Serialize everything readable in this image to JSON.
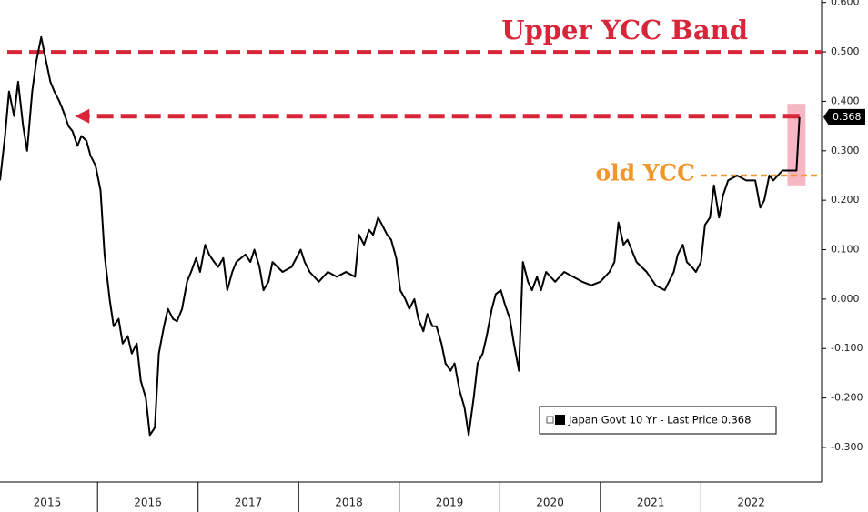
{
  "chart_data": {
    "type": "line",
    "xlim": [
      2015.03,
      2023.2
    ],
    "ylim": [
      -0.37,
      0.605
    ],
    "xticks": [
      {
        "value": 2015,
        "label": "2015"
      },
      {
        "value": 2016,
        "label": "2016"
      },
      {
        "value": 2017,
        "label": "2017"
      },
      {
        "value": 2018,
        "label": "2018"
      },
      {
        "value": 2019,
        "label": "2019"
      },
      {
        "value": 2020,
        "label": "2020"
      },
      {
        "value": 2021,
        "label": "2021"
      },
      {
        "value": 2022,
        "label": "2022"
      }
    ],
    "yticks": [
      {
        "value": 0.6,
        "label": "0.600"
      },
      {
        "value": 0.5,
        "label": "0.500"
      },
      {
        "value": 0.4,
        "label": "0.400"
      },
      {
        "value": 0.3,
        "label": "0.300"
      },
      {
        "value": 0.2,
        "label": "0.200"
      },
      {
        "value": 0.1,
        "label": "0.100"
      },
      {
        "value": 0,
        "label": "0.000"
      },
      {
        "value": -0.1,
        "label": "-0.100"
      },
      {
        "value": -0.2,
        "label": "-0.200"
      },
      {
        "value": -0.3,
        "label": "-0.300"
      }
    ],
    "legend": "lower right",
    "x": [
      2015.03,
      2015.08,
      2015.12,
      2015.17,
      2015.21,
      2015.26,
      2015.3,
      2015.35,
      2015.39,
      2015.44,
      2015.48,
      2015.53,
      2015.57,
      2015.62,
      2015.66,
      2015.71,
      2015.75,
      2015.8,
      2015.84,
      2015.89,
      2015.93,
      2015.98,
      2016.03,
      2016.07,
      2016.12,
      2016.16,
      2016.21,
      2016.25,
      2016.3,
      2016.34,
      2016.39,
      2016.43,
      2016.48,
      2016.52,
      2016.57,
      2016.61,
      2016.66,
      2016.7,
      2016.75,
      2016.79,
      2016.84,
      2016.89,
      2016.93,
      2016.98,
      2017.02,
      2017.07,
      2017.11,
      2017.16,
      2017.2,
      2017.25,
      2017.29,
      2017.34,
      2017.38,
      2017.47,
      2017.52,
      2017.56,
      2017.61,
      2017.65,
      2017.7,
      2017.74,
      2017.84,
      2017.93,
      2018.02,
      2018.06,
      2018.11,
      2018.2,
      2018.29,
      2018.38,
      2018.47,
      2018.56,
      2018.6,
      2018.65,
      2018.7,
      2018.74,
      2018.79,
      2018.83,
      2018.88,
      2018.92,
      2018.97,
      2019.01,
      2019.06,
      2019.1,
      2019.15,
      2019.19,
      2019.24,
      2019.28,
      2019.33,
      2019.37,
      2019.42,
      2019.46,
      2019.51,
      2019.55,
      2019.6,
      2019.65,
      2019.69,
      2019.74,
      2019.78,
      2019.83,
      2019.87,
      2019.92,
      2019.96,
      2020.01,
      2020.05,
      2020.1,
      2020.14,
      2020.19,
      2020.23,
      2020.28,
      2020.32,
      2020.37,
      2020.41,
      2020.46,
      2020.55,
      2020.64,
      2020.73,
      2020.82,
      2020.91,
      2021.0,
      2021.09,
      2021.14,
      2021.18,
      2021.23,
      2021.27,
      2021.36,
      2021.46,
      2021.55,
      2021.64,
      2021.73,
      2021.77,
      2021.82,
      2021.86,
      2021.91,
      2021.95,
      2022.0,
      2022.04,
      2022.09,
      2022.13,
      2022.18,
      2022.22,
      2022.27,
      2022.36,
      2022.45,
      2022.54,
      2022.59,
      2022.63,
      2022.68,
      2022.72,
      2022.81,
      2022.9,
      2022.95,
      2022.98
    ],
    "series": [
      {
        "name": "Japan Govt 10 Yr - Last Price 0.368",
        "color": "#000000",
        "values": [
          0.24,
          0.33,
          0.42,
          0.37,
          0.44,
          0.35,
          0.3,
          0.42,
          0.48,
          0.53,
          0.49,
          0.44,
          0.42,
          0.4,
          0.38,
          0.35,
          0.34,
          0.31,
          0.33,
          0.32,
          0.29,
          0.27,
          0.22,
          0.09,
          0.0,
          -0.055,
          -0.04,
          -0.09,
          -0.075,
          -0.11,
          -0.09,
          -0.165,
          -0.2,
          -0.275,
          -0.26,
          -0.11,
          -0.055,
          -0.02,
          -0.04,
          -0.045,
          -0.02,
          0.035,
          0.055,
          0.083,
          0.055,
          0.11,
          0.09,
          0.075,
          0.065,
          0.083,
          0.018,
          0.055,
          0.075,
          0.09,
          0.075,
          0.1,
          0.065,
          0.018,
          0.035,
          0.075,
          0.055,
          0.065,
          0.1,
          0.075,
          0.055,
          0.035,
          0.055,
          0.045,
          0.055,
          0.045,
          0.13,
          0.11,
          0.14,
          0.13,
          0.165,
          0.15,
          0.13,
          0.12,
          0.083,
          0.018,
          0.0,
          -0.02,
          0.0,
          -0.04,
          -0.065,
          -0.03,
          -0.055,
          -0.055,
          -0.09,
          -0.13,
          -0.145,
          -0.13,
          -0.185,
          -0.22,
          -0.275,
          -0.2,
          -0.13,
          -0.11,
          -0.075,
          -0.02,
          0.01,
          0.018,
          -0.01,
          -0.04,
          -0.09,
          -0.145,
          0.075,
          0.035,
          0.018,
          0.045,
          0.018,
          0.055,
          0.035,
          0.055,
          0.045,
          0.035,
          0.028,
          0.035,
          0.055,
          0.075,
          0.155,
          0.11,
          0.12,
          0.075,
          0.055,
          0.028,
          0.018,
          0.055,
          0.09,
          0.11,
          0.075,
          0.065,
          0.055,
          0.075,
          0.15,
          0.165,
          0.23,
          0.165,
          0.21,
          0.24,
          0.25,
          0.24,
          0.24,
          0.185,
          0.2,
          0.25,
          0.24,
          0.26,
          0.26,
          0.26,
          0.368
        ]
      }
    ],
    "annotations": [
      {
        "text": "Upper YCC Band",
        "y": 0.5,
        "color": "#d9253a"
      },
      {
        "text": "old YCC",
        "y": 0.25,
        "color": "#f0962c"
      }
    ],
    "arrow": {
      "y": 0.37,
      "x": [
        2015.8,
        2022.98
      ],
      "color": "#d9253a"
    },
    "highlight": {
      "x": [
        2022.86,
        2023.04
      ],
      "y": [
        0.23,
        0.395
      ],
      "color": "#f4a9b8"
    }
  }
}
